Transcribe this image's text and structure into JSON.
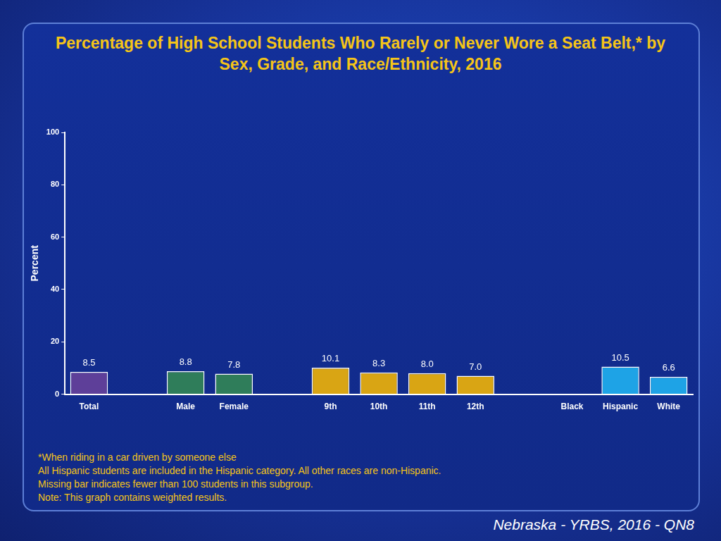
{
  "chart_data": {
    "type": "bar",
    "title": "Percentage of High School Students Who Rarely or Never Wore a Seat Belt,* by Sex, Grade, and Race/Ethnicity, 2016",
    "y_label": "Percent",
    "categories": [
      "Total",
      null,
      "Male",
      "Female",
      null,
      "9th",
      "10th",
      "11th",
      "12th",
      null,
      "Black",
      "Hispanic",
      "White"
    ],
    "values": [
      8.5,
      null,
      8.8,
      7.8,
      null,
      10.1,
      8.3,
      8.0,
      7.0,
      null,
      null,
      10.5,
      6.6
    ],
    "value_labels": [
      "8.5",
      null,
      "8.8",
      "7.8",
      null,
      "10.1",
      "8.3",
      "8.0",
      "7.0",
      null,
      null,
      "10.5",
      "6.6"
    ],
    "colors": [
      "#5e3f99",
      null,
      "#2f7d5a",
      "#2f7d5a",
      null,
      "#d9a514",
      "#d9a514",
      "#d9a514",
      "#d9a514",
      null,
      null,
      "#1ea3e6",
      "#1ea3e6"
    ],
    "ylim": [
      0,
      100
    ],
    "yticks": [
      0,
      20,
      40,
      60,
      80,
      100
    ],
    "grid": false,
    "data_labels": true,
    "notes": [
      "*When riding in a car driven by someone else",
      "All Hispanic students are included in the Hispanic category.  All other races are non-Hispanic.",
      "Missing bar indicates fewer than 100 students in this subgroup.",
      "Note: This graph contains weighted results."
    ],
    "source": "Nebraska - YRBS, 2016 - QN8"
  }
}
